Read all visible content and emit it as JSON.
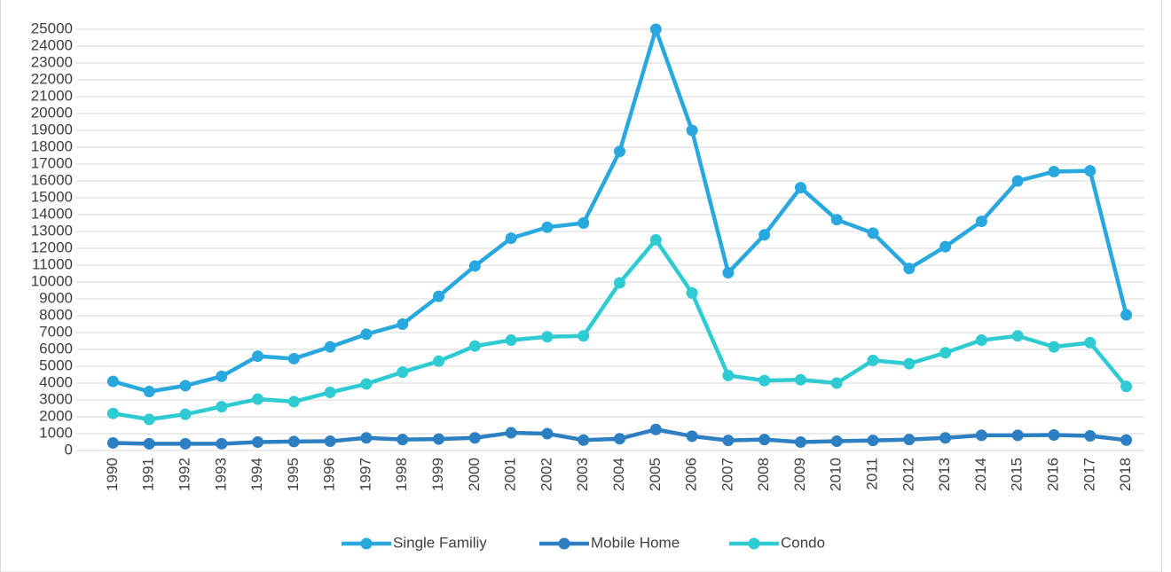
{
  "chart_data": {
    "type": "line",
    "categories": [
      "1990",
      "1991",
      "1992",
      "1993",
      "1994",
      "1995",
      "1996",
      "1997",
      "1998",
      "1999",
      "2000",
      "2001",
      "2002",
      "2003",
      "2004",
      "2005",
      "2006",
      "2007",
      "2008",
      "2009",
      "2010",
      "2011",
      "2012",
      "2013",
      "2014",
      "2015",
      "2016",
      "2017",
      "2018"
    ],
    "series": [
      {
        "name": "Single Familiy",
        "color": "#29a8e0",
        "values": [
          4100,
          3500,
          3850,
          4400,
          5600,
          5450,
          6150,
          6900,
          7500,
          9150,
          10950,
          12600,
          13250,
          13500,
          17750,
          25000,
          19000,
          10550,
          12800,
          15600,
          13700,
          12900,
          10800,
          12100,
          13600,
          16000,
          16550,
          16600,
          8050
        ]
      },
      {
        "name": "Mobile Home",
        "color": "#2c7fc3",
        "values": [
          450,
          400,
          400,
          400,
          500,
          530,
          550,
          750,
          650,
          680,
          750,
          1050,
          1000,
          620,
          700,
          1250,
          850,
          600,
          650,
          500,
          550,
          600,
          650,
          750,
          900,
          900,
          920,
          870,
          620
        ]
      },
      {
        "name": "Condo",
        "color": "#2ecbd3",
        "values": [
          2200,
          1850,
          2150,
          2600,
          3050,
          2900,
          3450,
          3950,
          4650,
          5300,
          6200,
          6550,
          6750,
          6800,
          9950,
          12500,
          9350,
          4450,
          4150,
          4200,
          4000,
          5350,
          5150,
          5800,
          6550,
          6800,
          6150,
          6400,
          3800
        ]
      }
    ],
    "ylim": [
      0,
      25000
    ],
    "yticks": [
      0,
      1000,
      2000,
      3000,
      4000,
      5000,
      6000,
      7000,
      8000,
      9000,
      10000,
      11000,
      12000,
      13000,
      14000,
      15000,
      16000,
      17000,
      18000,
      19000,
      20000,
      21000,
      22000,
      23000,
      24000,
      25000
    ],
    "grid": true,
    "legend": "bottom"
  }
}
